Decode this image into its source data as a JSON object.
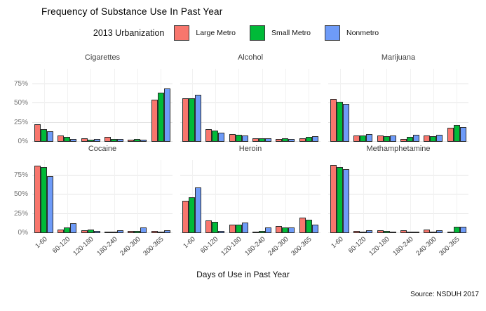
{
  "title": "Frequency of Substance Use In Past Year",
  "legend": {
    "title": "2013 Urbanization",
    "entries": [
      {
        "label": "Large Metro",
        "color": "#F8766D"
      },
      {
        "label": "Small Metro",
        "color": "#00BA38"
      },
      {
        "label": "Nonmetro",
        "color": "#6E9BF8"
      }
    ]
  },
  "xlabel": "Days of Use in Past Year",
  "caption": "Source: NSDUH 2017",
  "chart_data": {
    "type": "bar",
    "title": "Frequency of Substance Use In Past Year",
    "legend_title": "2013 Urbanization",
    "legend_position": "top",
    "grid": true,
    "categories": [
      "1-60",
      "60-120",
      "120-180",
      "180-240",
      "240-300",
      "300-365"
    ],
    "series_names": [
      "Large Metro",
      "Small Metro",
      "Nonmetro"
    ],
    "series_colors": [
      "#F8766D",
      "#00BA38",
      "#6E9BF8"
    ],
    "bar_border_color": "#2b2b2b",
    "xlabel": "Days of Use in Past Year",
    "ylabel": "",
    "ylim": [
      0,
      95
    ],
    "y_ticks": [
      {
        "label": "0%",
        "value": 0
      },
      {
        "label": "25%",
        "value": 25
      },
      {
        "label": "50%",
        "value": 50
      },
      {
        "label": "75%",
        "value": 75
      }
    ],
    "y_gridline_values": [
      0,
      25,
      50,
      75
    ],
    "unit": "percent",
    "caption": "Source: NSDUH 2017",
    "facet_layout": {
      "rows": 2,
      "cols": 3
    },
    "facets": [
      {
        "name": "Cigarettes",
        "series": [
          {
            "name": "Large Metro",
            "values": [
              23,
              8,
              5,
              6,
              3,
              55
            ]
          },
          {
            "name": "Small Metro",
            "values": [
              16,
              6,
              3,
              4,
              4,
              64
            ]
          },
          {
            "name": "Nonmetro",
            "values": [
              14,
              4,
              4,
              4,
              3,
              69
            ]
          }
        ]
      },
      {
        "name": "Alcohol",
        "series": [
          {
            "name": "Large Metro",
            "values": [
              57,
              16,
              10,
              5,
              4,
              5
            ]
          },
          {
            "name": "Small Metro",
            "values": [
              57,
              15,
              9,
              5,
              5,
              6
            ]
          },
          {
            "name": "Nonmetro",
            "values": [
              61,
              12,
              8,
              5,
              4,
              7
            ]
          }
        ]
      },
      {
        "name": "Marijuana",
        "series": [
          {
            "name": "Large Metro",
            "values": [
              56,
              8,
              8,
              4,
              8,
              18
            ]
          },
          {
            "name": "Small Metro",
            "values": [
              52,
              8,
              7,
              6,
              7,
              22
            ]
          },
          {
            "name": "Nonmetro",
            "values": [
              49,
              10,
              8,
              9,
              9,
              19
            ]
          }
        ]
      },
      {
        "name": "Cocaine",
        "series": [
          {
            "name": "Large Metro",
            "values": [
              88,
              5,
              4,
              1,
              3,
              3
            ]
          },
          {
            "name": "Small Metro",
            "values": [
              86,
              7,
              5,
              2,
              3,
              2
            ]
          },
          {
            "name": "Nonmetro",
            "values": [
              74,
              13,
              3,
              4,
              7,
              4
            ]
          }
        ]
      },
      {
        "name": "Heroin",
        "series": [
          {
            "name": "Large Metro",
            "values": [
              42,
              16,
              11,
              2,
              9,
              20
            ]
          },
          {
            "name": "Small Metro",
            "values": [
              47,
              15,
              11,
              3,
              7,
              17
            ]
          },
          {
            "name": "Nonmetro",
            "values": [
              59,
              3,
              14,
              7,
              7,
              11
            ]
          }
        ]
      },
      {
        "name": "Methamphetamine",
        "series": [
          {
            "name": "Large Metro",
            "values": [
              89,
              3,
              4,
              4,
              5,
              2
            ]
          },
          {
            "name": "Small Metro",
            "values": [
              86,
              2,
              3,
              2,
              1,
              8
            ]
          },
          {
            "name": "Nonmetro",
            "values": [
              83,
              4,
              2,
              1,
              4,
              8
            ]
          }
        ]
      }
    ]
  }
}
